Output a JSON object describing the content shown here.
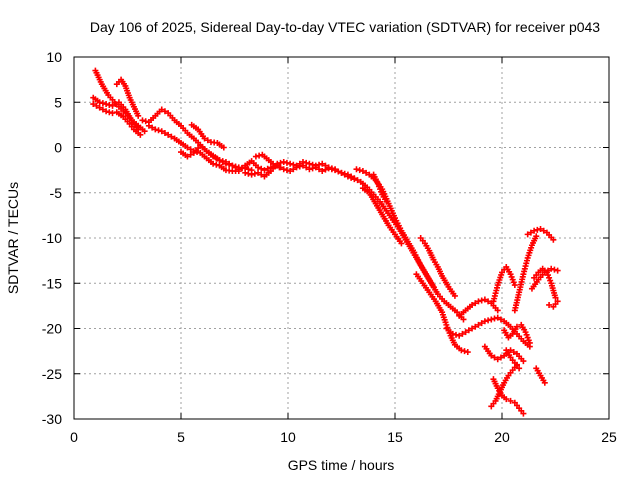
{
  "chart_data": {
    "type": "scatter",
    "title": "Day 106 of 2025, Sidereal Day-to-day VTEC variation (SDTVAR) for receiver p043",
    "xlabel": "GPS time / hours",
    "ylabel": "SDTVAR / TECUs",
    "xlim": [
      0,
      25
    ],
    "ylim": [
      -30,
      10
    ],
    "x_ticks": [
      0,
      5,
      10,
      15,
      20,
      25
    ],
    "y_ticks": [
      10,
      5,
      0,
      -5,
      -10,
      -15,
      -20,
      -25,
      -30
    ],
    "x_tick_labels": [
      "0",
      "5",
      "10",
      "15",
      "20",
      "25"
    ],
    "y_tick_labels": [
      "10",
      "5",
      "0",
      "-5",
      "-10",
      "-15",
      "-20",
      "-25",
      "-30"
    ],
    "grid": true,
    "legend": "none",
    "marker": "plus",
    "marker_color": "#ff0000",
    "series": [
      {
        "x": [
          1.0,
          1.3,
          1.6,
          1.9,
          2.1,
          2.4,
          2.7,
          3.0,
          3.3
        ],
        "y": [
          8.5,
          7.0,
          5.8,
          5.0,
          4.5,
          3.8,
          3.0,
          2.4,
          1.8
        ]
      },
      {
        "x": [
          0.9,
          1.2,
          1.5,
          1.8,
          2.1,
          2.4,
          2.7,
          3.0
        ],
        "y": [
          5.5,
          5.0,
          4.8,
          4.6,
          5.0,
          4.2,
          3.0,
          2.0
        ]
      },
      {
        "x": [
          0.9,
          1.2,
          1.5,
          1.8,
          2.0,
          2.3,
          2.6,
          2.8,
          3.1
        ],
        "y": [
          4.8,
          4.4,
          4.0,
          3.8,
          3.9,
          3.4,
          2.6,
          2.0,
          1.4
        ]
      },
      {
        "x": [
          2.0,
          2.2,
          2.4,
          2.6,
          2.8,
          3.0
        ],
        "y": [
          7.0,
          7.5,
          6.8,
          5.5,
          4.5,
          3.5
        ]
      },
      {
        "x": [
          3.2,
          3.5,
          3.8,
          4.1,
          4.4,
          4.7,
          5.0,
          5.3,
          5.6,
          5.9,
          6.2,
          6.5,
          6.8,
          7.1,
          7.4,
          7.7,
          8.0,
          8.3
        ],
        "y": [
          3.0,
          2.8,
          3.5,
          4.2,
          3.8,
          3.0,
          2.4,
          1.6,
          1.0,
          0.3,
          -0.4,
          -0.9,
          -1.4,
          -1.8,
          -2.0,
          -2.2,
          -2.3,
          -2.5
        ]
      },
      {
        "x": [
          3.5,
          3.8,
          4.1,
          4.4,
          4.7,
          5.0,
          5.3,
          5.6,
          5.9,
          6.2,
          6.5,
          6.8,
          7.1,
          7.4,
          7.7
        ],
        "y": [
          2.4,
          2.0,
          1.8,
          1.4,
          1.0,
          0.5,
          0.0,
          -0.4,
          -0.6,
          -1.2,
          -1.8,
          -2.0,
          -2.5,
          -2.6,
          -2.6
        ]
      },
      {
        "x": [
          5.0,
          5.3,
          5.6,
          5.9,
          6.2,
          6.5,
          6.8,
          7.1,
          7.4,
          7.7,
          8.0
        ],
        "y": [
          -0.5,
          -1.0,
          -0.6,
          0.2,
          -0.4,
          -1.0,
          -1.4,
          -1.6,
          -2.0,
          -2.4,
          -2.2
        ]
      },
      {
        "x": [
          5.5,
          5.8,
          6.1,
          6.4,
          6.7,
          7.0
        ],
        "y": [
          2.5,
          2.0,
          1.0,
          0.6,
          0.5,
          0.0
        ]
      },
      {
        "x": [
          8.0,
          8.3,
          8.6,
          8.9,
          9.2,
          9.5,
          9.8,
          10.1,
          10.4,
          10.7,
          11.0,
          11.3,
          11.6,
          11.9,
          12.2,
          12.5,
          12.8,
          13.1
        ],
        "y": [
          -2.0,
          -1.5,
          -2.2,
          -2.5,
          -2.2,
          -2.0,
          -2.4,
          -2.6,
          -2.2,
          -2.0,
          -2.4,
          -2.2,
          -2.6,
          -2.3,
          -2.5,
          -2.8,
          -3.2,
          -3.5
        ]
      },
      {
        "x": [
          8.0,
          8.3,
          8.6,
          8.9,
          9.2,
          9.5,
          9.8,
          10.1,
          10.4,
          10.7,
          11.0,
          11.3,
          11.6,
          11.9,
          12.2
        ],
        "y": [
          -2.8,
          -3.0,
          -2.8,
          -3.2,
          -2.6,
          -1.8,
          -1.6,
          -1.8,
          -2.0,
          -1.6,
          -1.8,
          -2.0,
          -1.8,
          -2.2,
          -2.4
        ]
      },
      {
        "x": [
          8.5,
          8.8,
          9.0,
          9.3,
          9.6
        ],
        "y": [
          -1.0,
          -0.8,
          -1.2,
          -1.8,
          -2.2
        ]
      },
      {
        "x": [
          12.5,
          12.8,
          13.1,
          13.4,
          13.7,
          14.0,
          14.3,
          14.6,
          14.9,
          15.2,
          15.5,
          15.8,
          16.1,
          16.4,
          16.7,
          17.0,
          17.3,
          17.6,
          17.9,
          18.2
        ],
        "y": [
          -2.8,
          -3.0,
          -3.4,
          -3.8,
          -4.4,
          -5.2,
          -6.0,
          -7.0,
          -8.0,
          -9.0,
          -10.2,
          -11.4,
          -12.6,
          -13.8,
          -15.0,
          -16.2,
          -17.0,
          -17.6,
          -18.2,
          -19.0
        ]
      },
      {
        "x": [
          13.2,
          13.5,
          13.8,
          14.1,
          14.4,
          14.7,
          15.0,
          15.3,
          15.6,
          15.9,
          16.2,
          16.5,
          16.8
        ],
        "y": [
          -2.4,
          -2.6,
          -3.0,
          -3.6,
          -4.6,
          -6.2,
          -7.8,
          -9.2,
          -10.4,
          -11.6,
          -13.0,
          -14.2,
          -15.4
        ]
      },
      {
        "x": [
          13.5,
          13.8,
          14.1,
          14.4,
          14.7,
          15.0,
          15.3
        ],
        "y": [
          -4.5,
          -5.0,
          -6.2,
          -7.4,
          -8.6,
          -9.6,
          -10.6
        ]
      },
      {
        "x": [
          14.0,
          14.2,
          14.4,
          14.6
        ],
        "y": [
          -3.0,
          -4.0,
          -5.2,
          -6.0
        ]
      },
      {
        "x": [
          16.2,
          16.4,
          16.6,
          16.8,
          17.0,
          17.2,
          17.5,
          17.8
        ],
        "y": [
          -10.0,
          -10.6,
          -11.4,
          -12.4,
          -13.2,
          -14.2,
          -15.4,
          -16.4
        ]
      },
      {
        "x": [
          16.0,
          16.3,
          16.6,
          16.9,
          17.2,
          17.4,
          17.6,
          17.8,
          18.1,
          18.4
        ],
        "y": [
          -14.0,
          -15.0,
          -16.0,
          -17.0,
          -18.2,
          -19.6,
          -20.8,
          -21.8,
          -22.4,
          -22.6
        ]
      },
      {
        "x": [
          17.4,
          17.7,
          18.0,
          18.3,
          18.6,
          18.9,
          19.2,
          19.5,
          19.8,
          20.1,
          20.4,
          20.7,
          21.0,
          21.3
        ],
        "y": [
          -20.0,
          -20.6,
          -20.8,
          -20.4,
          -20.0,
          -19.6,
          -19.2,
          -19.0,
          -18.8,
          -19.2,
          -19.8,
          -20.6,
          -21.4,
          -22.0
        ]
      },
      {
        "x": [
          18.0,
          18.3,
          18.6,
          18.9,
          19.2,
          19.5,
          19.8
        ],
        "y": [
          -18.6,
          -18.0,
          -17.4,
          -17.0,
          -16.8,
          -17.2,
          -18.0
        ]
      },
      {
        "x": [
          19.2,
          19.5,
          19.8,
          20.1,
          20.4,
          20.7,
          21.0
        ],
        "y": [
          -22.0,
          -23.0,
          -23.4,
          -23.0,
          -22.4,
          -22.8,
          -23.6
        ]
      },
      {
        "x": [
          19.6,
          19.8,
          20.0,
          20.2,
          20.4,
          20.6,
          20.8,
          21.0
        ],
        "y": [
          -25.6,
          -26.6,
          -27.4,
          -27.8,
          -28.0,
          -28.2,
          -28.8,
          -29.4
        ]
      },
      {
        "x": [
          19.5,
          19.7,
          19.9,
          20.1,
          20.3,
          20.5,
          20.7
        ],
        "y": [
          -28.6,
          -28.0,
          -27.0,
          -26.0,
          -25.2,
          -24.6,
          -24.0
        ]
      },
      {
        "x": [
          19.6,
          19.8,
          20.0,
          20.2,
          20.4,
          20.6
        ],
        "y": [
          -17.0,
          -15.2,
          -13.8,
          -13.2,
          -14.0,
          -15.2
        ]
      },
      {
        "x": [
          20.1,
          20.3,
          20.5,
          20.7,
          20.9,
          21.1,
          21.3
        ],
        "y": [
          -20.2,
          -21.0,
          -20.6,
          -19.8,
          -19.6,
          -20.4,
          -21.6
        ]
      },
      {
        "x": [
          20.6,
          20.8,
          21.0,
          21.2,
          21.4,
          21.6
        ],
        "y": [
          -18.0,
          -16.0,
          -14.0,
          -12.2,
          -10.8,
          -9.8
        ]
      },
      {
        "x": [
          20.2,
          20.4,
          20.6,
          20.8
        ],
        "y": [
          -22.4,
          -23.2,
          -23.8,
          -24.4
        ]
      },
      {
        "x": [
          21.2,
          21.5,
          21.8,
          22.1,
          22.4
        ],
        "y": [
          -9.6,
          -9.2,
          -9.0,
          -9.4,
          -10.2
        ]
      },
      {
        "x": [
          21.5,
          21.7,
          21.9,
          22.1,
          22.3,
          22.5
        ],
        "y": [
          -14.4,
          -13.8,
          -13.4,
          -13.8,
          -15.0,
          -16.6
        ]
      },
      {
        "x": [
          21.4,
          21.7,
          22.0,
          22.3,
          22.6
        ],
        "y": [
          -15.6,
          -14.6,
          -13.8,
          -13.4,
          -13.6
        ]
      },
      {
        "x": [
          22.2,
          22.4,
          22.6
        ],
        "y": [
          -17.4,
          -17.6,
          -17.0
        ]
      },
      {
        "x": [
          21.6,
          21.8,
          22.0
        ],
        "y": [
          -24.4,
          -25.2,
          -26.0
        ]
      }
    ]
  }
}
